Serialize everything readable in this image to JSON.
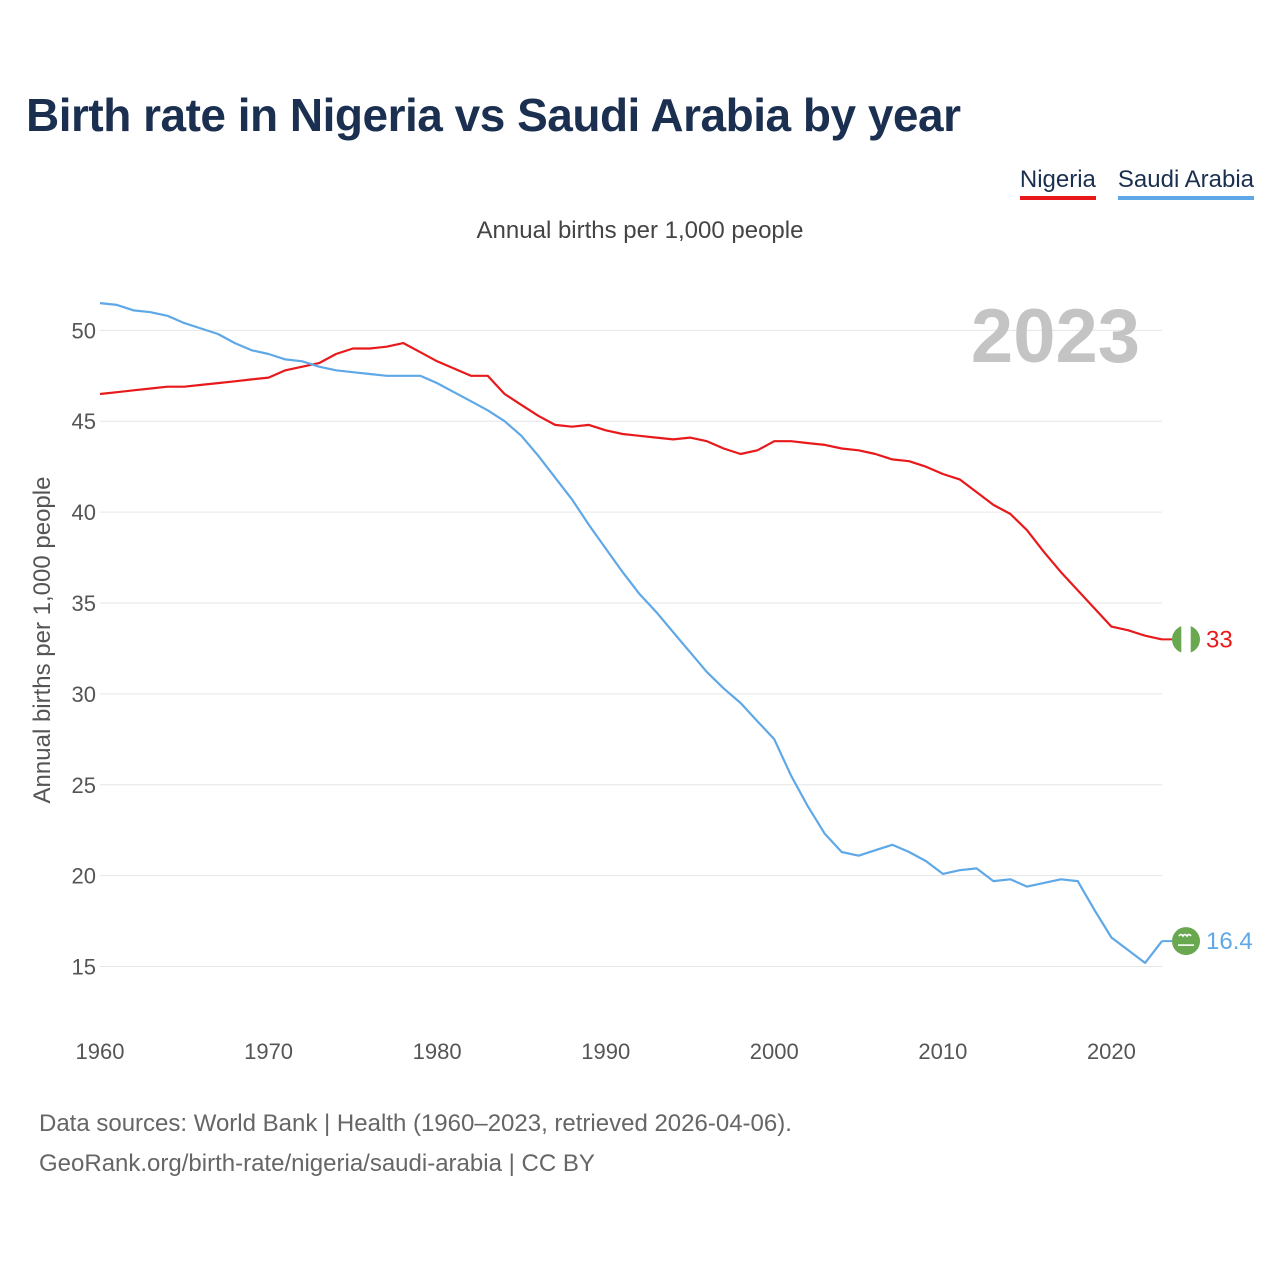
{
  "title": "Birth rate in Nigeria vs Saudi Arabia by year",
  "subtitle": "Annual births per 1,000 people",
  "legend": {
    "nigeria": "Nigeria",
    "saudi": "Saudi Arabia"
  },
  "year_label": "2023",
  "footer": {
    "line1": "Data sources: World Bank | Health (1960–2023, retrieved 2026-04-06).",
    "line2": "GeoRank.org/birth-rate/nigeria/saudi-arabia | CC BY"
  },
  "colors": {
    "nigeria": "#e8191b",
    "saudi": "#5fa8e8",
    "grid": "#e6e6e6",
    "axis_text": "#555555",
    "year": "#c4c4c4"
  },
  "chart_data": {
    "type": "line",
    "title": "Birth rate in Nigeria vs Saudi Arabia by year",
    "xlabel": "",
    "ylabel": "Annual births per 1,000 people",
    "xlim": [
      1960,
      2023
    ],
    "ylim": [
      12.5,
      52
    ],
    "xticks": [
      1960,
      1970,
      1980,
      1990,
      2000,
      2010,
      2020
    ],
    "yticks": [
      15,
      20,
      25,
      30,
      35,
      40,
      45,
      50
    ],
    "x": [
      1960,
      1961,
      1962,
      1963,
      1964,
      1965,
      1966,
      1967,
      1968,
      1969,
      1970,
      1971,
      1972,
      1973,
      1974,
      1975,
      1976,
      1977,
      1978,
      1979,
      1980,
      1981,
      1982,
      1983,
      1984,
      1985,
      1986,
      1987,
      1988,
      1989,
      1990,
      1991,
      1992,
      1993,
      1994,
      1995,
      1996,
      1997,
      1998,
      1999,
      2000,
      2001,
      2002,
      2003,
      2004,
      2005,
      2006,
      2007,
      2008,
      2009,
      2010,
      2011,
      2012,
      2013,
      2014,
      2015,
      2016,
      2017,
      2018,
      2019,
      2020,
      2021,
      2022,
      2023
    ],
    "series": [
      {
        "name": "Nigeria",
        "end_label": "33",
        "values": [
          46.5,
          46.6,
          46.7,
          46.8,
          46.9,
          46.9,
          47.0,
          47.1,
          47.2,
          47.3,
          47.4,
          47.8,
          48.0,
          48.2,
          48.7,
          49.0,
          49.0,
          49.1,
          49.3,
          48.8,
          48.3,
          47.9,
          47.5,
          47.5,
          46.5,
          45.9,
          45.3,
          44.8,
          44.7,
          44.8,
          44.5,
          44.3,
          44.2,
          44.1,
          44.0,
          44.1,
          43.9,
          43.5,
          43.2,
          43.4,
          43.9,
          43.9,
          43.8,
          43.7,
          43.5,
          43.4,
          43.2,
          42.9,
          42.8,
          42.5,
          42.1,
          41.8,
          41.1,
          40.4,
          39.9,
          39.0,
          37.8,
          36.7,
          35.7,
          34.7,
          33.7,
          33.5,
          33.2,
          33.0
        ]
      },
      {
        "name": "Saudi Arabia",
        "end_label": "16.4",
        "values": [
          51.5,
          51.4,
          51.1,
          51.0,
          50.8,
          50.4,
          50.1,
          49.8,
          49.3,
          48.9,
          48.7,
          48.4,
          48.3,
          48.0,
          47.8,
          47.7,
          47.6,
          47.5,
          47.5,
          47.5,
          47.1,
          46.6,
          46.1,
          45.6,
          45.0,
          44.2,
          43.1,
          41.9,
          40.7,
          39.3,
          38.0,
          36.7,
          35.5,
          34.5,
          33.4,
          32.3,
          31.2,
          30.3,
          29.5,
          28.5,
          27.5,
          25.5,
          23.8,
          22.3,
          21.3,
          21.1,
          21.4,
          21.7,
          21.3,
          20.8,
          20.1,
          20.3,
          20.4,
          19.7,
          19.8,
          19.4,
          19.6,
          19.8,
          19.7,
          18.1,
          16.6,
          15.9,
          15.2,
          16.4
        ]
      }
    ]
  }
}
